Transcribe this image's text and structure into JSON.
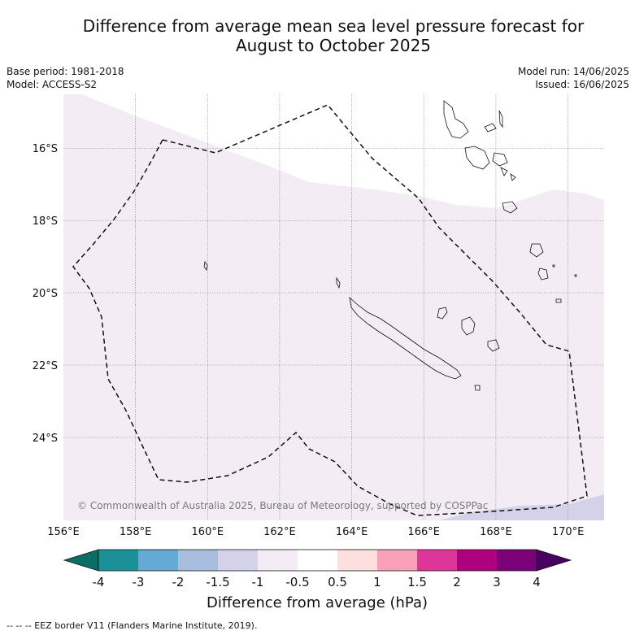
{
  "title": {
    "line1": "Difference from average mean sea level pressure forecast for",
    "line2": "August to October 2025"
  },
  "meta_left": {
    "base_period": "Base period: 1981-2018",
    "model": "Model: ACCESS-S2"
  },
  "meta_right": {
    "model_run": "Model run: 14/06/2025",
    "issued": "Issued: 16/06/2025"
  },
  "map": {
    "lat_labels": [
      "16°S",
      "18°S",
      "20°S",
      "22°S",
      "24°S"
    ],
    "lon_labels": [
      "156°E",
      "158°E",
      "160°E",
      "162°E",
      "164°E",
      "166°E",
      "168°E",
      "170°E"
    ],
    "copyright": "© Commonwealth of Australia 2025, Bureau of Meteorology, supported by COSPPac",
    "fill_colors": {
      "band_m1_m05": "#f3ecf5",
      "band_m15_m1": "#d3d2e8",
      "land_outline": "#111111"
    }
  },
  "colorbar": {
    "title": "Difference from average (hPa)",
    "labels": [
      "-4",
      "-3",
      "-2",
      "-1.5",
      "-1",
      "-0.5",
      "0.5",
      "1",
      "1.5",
      "2",
      "3",
      "4"
    ],
    "colors": [
      "#0a6e64",
      "#1b9099",
      "#64aad4",
      "#a8bcdd",
      "#d3d2e8",
      "#f3ecf5",
      "#ffffff",
      "#fde0de",
      "#f8a0b9",
      "#dd3598",
      "#ad017d",
      "#7a0177",
      "#4a0060"
    ]
  },
  "footnote": "--  --  -- EEZ border V11 (Flanders Marine Institute, 2019)."
}
